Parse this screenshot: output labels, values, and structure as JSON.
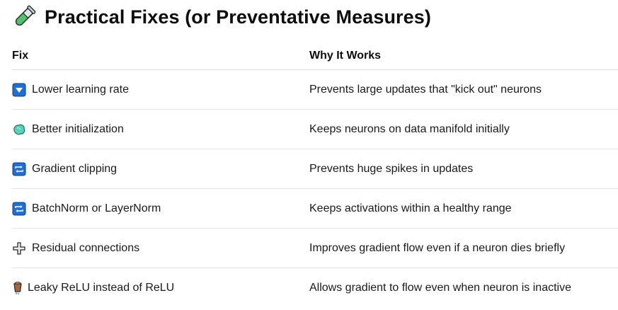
{
  "title": "Practical Fixes (or Preventative Measures)",
  "title_icon": "test-tube-icon",
  "table": {
    "headers": {
      "fix": "Fix",
      "why": "Why It Works"
    },
    "rows": [
      {
        "icon": "down-arrow-button-icon",
        "fix": "Lower learning rate",
        "why": "Prevents large updates that \"kick out\" neurons"
      },
      {
        "icon": "rock-icon",
        "fix": "Better initialization",
        "why": "Keeps neurons on data manifold initially"
      },
      {
        "icon": "repeat-button-icon",
        "fix": "Gradient clipping",
        "why": "Prevents huge spikes in updates"
      },
      {
        "icon": "repeat-button-icon",
        "fix": "BatchNorm or LayerNorm",
        "why": "Keeps activations within a healthy range"
      },
      {
        "icon": "plus-icon",
        "fix": "Residual connections",
        "why": "Improves gradient flow even if a neuron dies briefly"
      },
      {
        "icon": "leaking-bucket-icon",
        "fix": "Leaky ReLU instead of ReLU",
        "why": "Allows gradient to flow even when neuron is inactive"
      }
    ]
  },
  "colors": {
    "text": "#111111",
    "divider": "#e6e6e6",
    "emoji_blue": "#1e6fd9",
    "emoji_teal": "#58d2b8",
    "tube_green": "#4fc26a"
  }
}
